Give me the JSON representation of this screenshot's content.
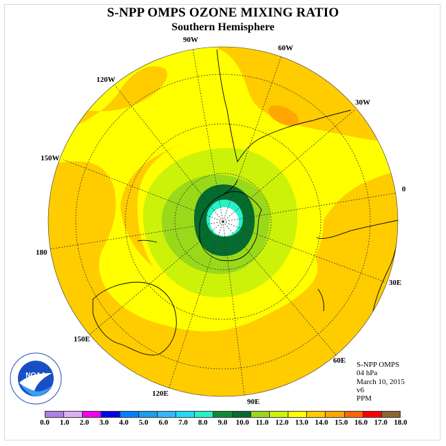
{
  "title": "S-NPP OMPS OZONE MIXING RATIO",
  "subtitle": "Southern Hemisphere",
  "longitude_labels": {
    "w90": "90W",
    "w60": "60W",
    "w30": "30W",
    "w120": "120W",
    "w150": "150W",
    "lon0": "0",
    "lon180": "180",
    "e30": "30E",
    "e150": "150E",
    "e60": "60E",
    "e120": "120E",
    "e90": "90E"
  },
  "info": {
    "instrument": "S-NPP OMPS",
    "level": "04 hPa",
    "date": "March 10, 2015",
    "version": "v6",
    "units": "PPM"
  },
  "logo_text": "NOAA",
  "colorbar": {
    "ticks": [
      "0.0",
      "1.0",
      "2.0",
      "3.0",
      "4.0",
      "5.0",
      "6.0",
      "7.0",
      "8.0",
      "9.0",
      "10.0",
      "11.0",
      "12.0",
      "13.0",
      "14.0",
      "15.0",
      "16.0",
      "17.0",
      "18.0"
    ],
    "colors": [
      "#b27fe6",
      "#dbb0f0",
      "#f200f2",
      "#0000e6",
      "#0080ff",
      "#1a9cf0",
      "#33b5ff",
      "#26d9f2",
      "#26f2c8",
      "#0f8c3a",
      "#066b2e",
      "#99d91a",
      "#ccf20a",
      "#ffff00",
      "#ffcc00",
      "#ffa600",
      "#ff6600",
      "#ff0000",
      "#8c6633"
    ]
  }
}
